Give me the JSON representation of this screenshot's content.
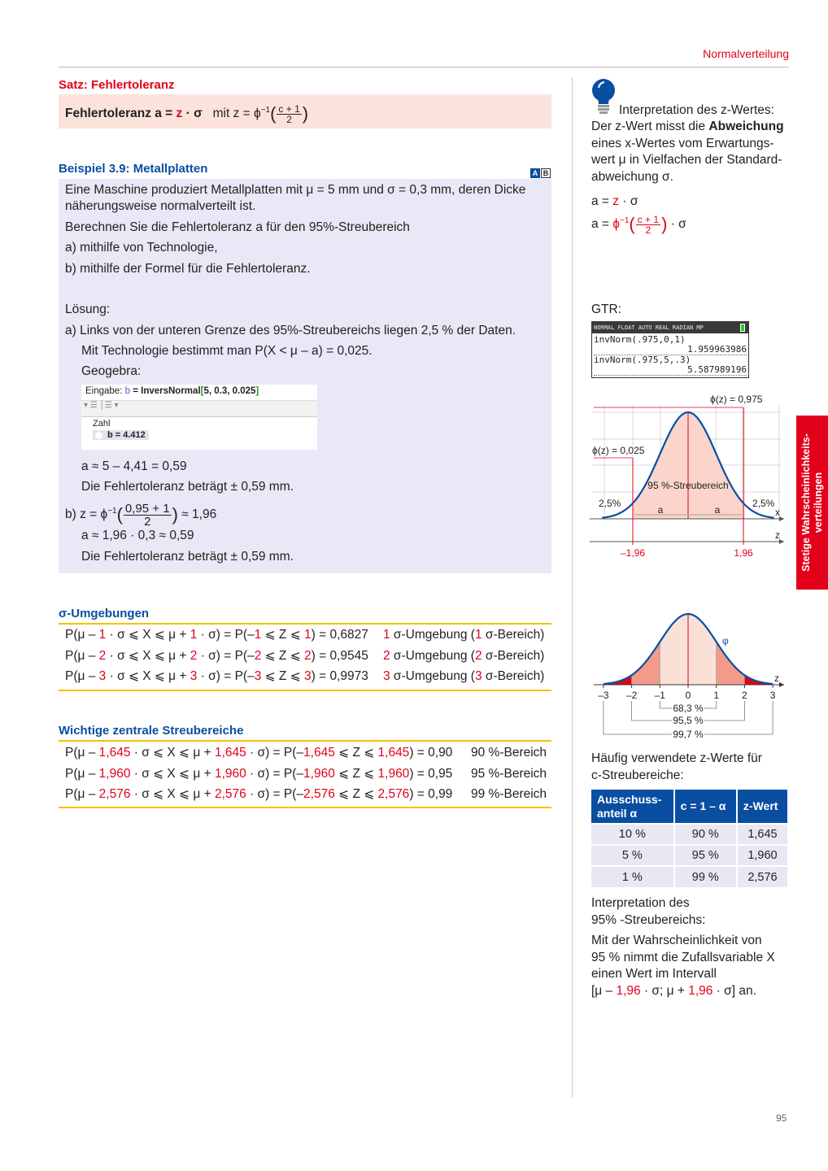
{
  "header": {
    "chapter": "Normalverteilung",
    "page_number": "95",
    "side_tab": [
      "Stetige Wahrscheinlichkeits-",
      "verteilungen"
    ]
  },
  "satz": {
    "title": "Satz: Fehlertoleranz",
    "label": "Fehlertoleranz a = ",
    "z": "z",
    "sigma": " · σ",
    "mit": "mit z = ϕ",
    "inv": "−1",
    "num": "c + 1",
    "den": "2"
  },
  "beispiel": {
    "title": "Beispiel 3.9: Metallplatten",
    "badges": [
      "A",
      "B"
    ],
    "text": [
      "Eine Maschine produziert Metallplatten mit μ = 5 mm und σ = 0,3 mm, deren Dicke",
      "näherungsweise normalverteilt ist.",
      "Berechnen Sie die Fehlertoleranz a für den 95%-Streubereich",
      "a)  mithilfe von Technologie,",
      "b)  mithilfe der Formel für die Fehlertoleranz."
    ],
    "loesung": "Lösung:",
    "a_lines": [
      "a)  Links von der unteren Grenze des 95%-Streubereichs liegen 2,5 % der Daten.",
      "Mit Technologie bestimmt man P(X < μ – a) = 0,025.",
      "Geogebra:"
    ],
    "geogebra": {
      "input_label": "Eingabe:",
      "input_var": "b",
      "input_eq": " = InversNormal",
      "bracket_open": "[",
      "args": "5, 0.3, 0.025",
      "bracket_close": "]",
      "category": "Zahl",
      "result": "b = 4.412"
    },
    "a_result": [
      "a ≈ 5 – 4,41 = 0,59",
      "Die Fehlertoleranz beträgt ± 0,59 mm."
    ],
    "b_prefix": "b)  z = ϕ",
    "b_inv": "−1",
    "b_num": "0,95 + 1",
    "b_den": "2",
    "b_suffix": "≈ 1,96",
    "b_result": [
      "a ≈ 1,96 · 0,3 ≈ 0,59",
      "Die Fehlertoleranz beträgt ± 0,59 mm."
    ]
  },
  "sigma": {
    "title": "σ-Umgebungen",
    "rows": [
      {
        "left": [
          [
            "P(μ – ",
            ""
          ],
          [
            "1",
            "red"
          ],
          [
            " · σ ⩽ X ⩽ μ + ",
            ""
          ],
          [
            "1",
            "red"
          ],
          [
            " · σ) = P(–",
            ""
          ],
          [
            "1",
            "red"
          ],
          [
            " ⩽ Z ⩽ ",
            ""
          ],
          [
            "1",
            "red"
          ],
          [
            ") = 0,6827",
            ""
          ]
        ],
        "right": [
          [
            "1",
            "red"
          ],
          [
            " σ-Umgebung (",
            ""
          ],
          [
            "1",
            "red"
          ],
          [
            " σ-Bereich)",
            ""
          ]
        ]
      },
      {
        "left": [
          [
            "P(μ – ",
            ""
          ],
          [
            "2",
            "red"
          ],
          [
            " · σ ⩽ X ⩽ μ + ",
            ""
          ],
          [
            "2",
            "red"
          ],
          [
            " · σ) = P(–",
            ""
          ],
          [
            "2",
            "red"
          ],
          [
            " ⩽ Z ⩽ ",
            ""
          ],
          [
            "2",
            "red"
          ],
          [
            ") = 0,9545",
            ""
          ]
        ],
        "right": [
          [
            "2",
            "red"
          ],
          [
            " σ-Umgebung (",
            ""
          ],
          [
            "2",
            "red"
          ],
          [
            " σ-Bereich)",
            ""
          ]
        ]
      },
      {
        "left": [
          [
            "P(μ – ",
            ""
          ],
          [
            "3",
            "red"
          ],
          [
            " · σ ⩽ X ⩽ μ + ",
            ""
          ],
          [
            "3",
            "red"
          ],
          [
            " · σ) = P(–",
            ""
          ],
          [
            "3",
            "red"
          ],
          [
            " ⩽ Z ⩽ ",
            ""
          ],
          [
            "3",
            "red"
          ],
          [
            ") = 0,9973",
            ""
          ]
        ],
        "right": [
          [
            "3",
            "red"
          ],
          [
            " σ-Umgebung (",
            ""
          ],
          [
            "3",
            "red"
          ],
          [
            " σ-Bereich)",
            ""
          ]
        ]
      }
    ]
  },
  "streu": {
    "title": "Wichtige zentrale Streubereiche",
    "rows": [
      {
        "left": [
          [
            "P(μ – ",
            ""
          ],
          [
            "1,645",
            "red"
          ],
          [
            " · σ ⩽ X ⩽ μ + ",
            ""
          ],
          [
            "1,645",
            "red"
          ],
          [
            " · σ) = P(–",
            ""
          ],
          [
            "1,645",
            "red"
          ],
          [
            " ⩽ Z ⩽ ",
            ""
          ],
          [
            "1,645",
            "red"
          ],
          [
            ") = 0,90",
            ""
          ]
        ],
        "right": "90 %-Bereich"
      },
      {
        "left": [
          [
            "P(μ – ",
            ""
          ],
          [
            "1,960",
            "red"
          ],
          [
            " · σ ⩽ X ⩽ μ + ",
            ""
          ],
          [
            "1,960",
            "red"
          ],
          [
            " · σ) = P(–",
            ""
          ],
          [
            "1,960",
            "red"
          ],
          [
            " ⩽ Z ⩽ ",
            ""
          ],
          [
            "1,960",
            "red"
          ],
          [
            ") = 0,95",
            ""
          ]
        ],
        "right": "95 %-Bereich"
      },
      {
        "left": [
          [
            "P(μ – ",
            ""
          ],
          [
            "2,576",
            "red"
          ],
          [
            " · σ ⩽ X ⩽ μ + ",
            ""
          ],
          [
            "2,576",
            "red"
          ],
          [
            " · σ) = P(–",
            ""
          ],
          [
            "2,576",
            "red"
          ],
          [
            " ⩽ Z ⩽ ",
            ""
          ],
          [
            "2,576",
            "red"
          ],
          [
            ") = 0,99",
            ""
          ]
        ],
        "right": "99 %-Bereich"
      }
    ]
  },
  "side": {
    "tip_icon": "lightbulb-icon",
    "tip": [
      [
        [
          "Interpretation des z-Wertes:",
          ""
        ]
      ],
      [
        [
          "Der z-Wert misst die ",
          ""
        ],
        [
          "Abweichung",
          "b"
        ]
      ],
      [
        [
          "eines x-Wertes vom Erwartungs-",
          ""
        ]
      ],
      [
        [
          "wert μ in Vielfachen der Standard-",
          ""
        ]
      ],
      [
        [
          "abweichung σ.",
          ""
        ]
      ]
    ],
    "formula1": [
      [
        "a = ",
        ""
      ],
      [
        "z",
        "red"
      ],
      [
        " · σ",
        ""
      ]
    ],
    "f2_prefix": "a = ",
    "f2_phi": "ϕ",
    "f2_inv": "−1",
    "f2_num": "c + 1",
    "f2_den": "2",
    "f2_suffix": " · σ",
    "gtr_label": "GTR:",
    "calc": {
      "status": "NORMAL FLOAT AUTO REAL RADIAN MP",
      "lines": [
        "invNorm(.975,0,1)",
        "1.959963986",
        "invNorm(.975,5,.3)",
        "5.587989196"
      ]
    },
    "chart1": {
      "phi_high": "ϕ(z) = 0,975",
      "phi_low": "ϕ(z) = 0,025",
      "region": "95 %-Streubereich",
      "tail_left": "2,5%",
      "tail_right": "2,5%",
      "a_left": "a",
      "a_right": "a",
      "axis_x": "x",
      "axis_z": "z",
      "z_low": "–1,96",
      "z_high": "1,96",
      "z_value": 1.96
    },
    "chart2": {
      "curve_label": "φ",
      "axis_z": "z",
      "ticks": [
        "–3",
        "–2",
        "–1",
        "0",
        "1",
        "2",
        "3"
      ],
      "brackets": [
        {
          "k": 1,
          "label": "68,3 %"
        },
        {
          "k": 2,
          "label": "95,5 %"
        },
        {
          "k": 3,
          "label": "99,7 %"
        }
      ],
      "colors": {
        "inner": "#fbe0d8",
        "middle": "#f29b88",
        "outer": "#e3001b",
        "curve": "#0a4ea2"
      }
    },
    "table_intro": [
      "Häufig verwendete z-Werte für",
      "c-Streubereiche:"
    ],
    "table": {
      "headers": [
        "Ausschuss-\nanteil α",
        "c = 1 – α",
        "z-Wert"
      ],
      "rows": [
        [
          "10 %",
          "90 %",
          "1,645"
        ],
        [
          "5 %",
          "95 %",
          "1,960"
        ],
        [
          "1 %",
          "99 %",
          "2,576"
        ]
      ]
    },
    "interp": [
      [
        [
          "Interpretation des",
          ""
        ]
      ],
      [
        [
          "95% -Streubereichs:",
          ""
        ]
      ],
      [
        [
          "Mit der Wahrscheinlichkeit von",
          ""
        ]
      ],
      [
        [
          "95 % nimmt die Zufallsvariable X",
          ""
        ]
      ],
      [
        [
          "einen Wert im Intervall",
          ""
        ]
      ],
      [
        [
          "[μ – ",
          ""
        ],
        [
          "1,96",
          "red"
        ],
        [
          " · σ; μ + ",
          ""
        ],
        [
          "1,96",
          "red"
        ],
        [
          " · σ] an.",
          ""
        ]
      ]
    ]
  },
  "colors": {
    "red": "#e3001b",
    "blue": "#0a4ea2",
    "pink_box": "#fbe3dc",
    "lavender_box": "#e8e8f6",
    "rule": "#f2c200"
  }
}
